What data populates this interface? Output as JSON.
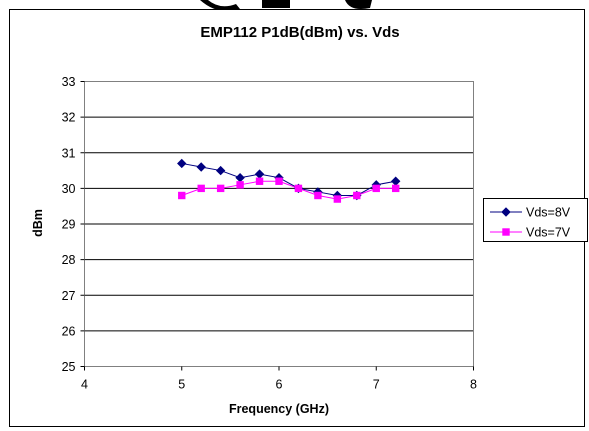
{
  "chart_data": {
    "type": "line",
    "title": "EMP112 P1dB(dBm) vs. Vds",
    "xlabel": "Frequency (GHz)",
    "ylabel": "dBm",
    "xlim": [
      4,
      8
    ],
    "ylim": [
      25,
      33
    ],
    "x_ticks": [
      "4",
      "5",
      "6",
      "7",
      "8"
    ],
    "y_ticks": [
      "25",
      "26",
      "27",
      "28",
      "29",
      "30",
      "31",
      "32",
      "33"
    ],
    "grid": "horizontal",
    "legend_position": "right",
    "series": [
      {
        "name": "Vds=8V",
        "color": "#000080",
        "marker": "diamond",
        "x": [
          5.0,
          5.2,
          5.4,
          5.6,
          5.8,
          6.0,
          6.2,
          6.4,
          6.6,
          6.8,
          7.0,
          7.2
        ],
        "y": [
          30.7,
          30.6,
          30.5,
          30.3,
          30.4,
          30.3,
          30.0,
          29.9,
          29.8,
          29.8,
          30.1,
          30.2
        ]
      },
      {
        "name": "Vds=7V",
        "color": "#ff00ff",
        "marker": "square",
        "x": [
          5.0,
          5.2,
          5.4,
          5.6,
          5.8,
          6.0,
          6.2,
          6.4,
          6.6,
          6.8,
          7.0,
          7.2
        ],
        "y": [
          29.8,
          30.0,
          30.0,
          30.1,
          30.2,
          30.2,
          30.0,
          29.8,
          29.7,
          29.8,
          30.0,
          30.0
        ]
      }
    ]
  }
}
